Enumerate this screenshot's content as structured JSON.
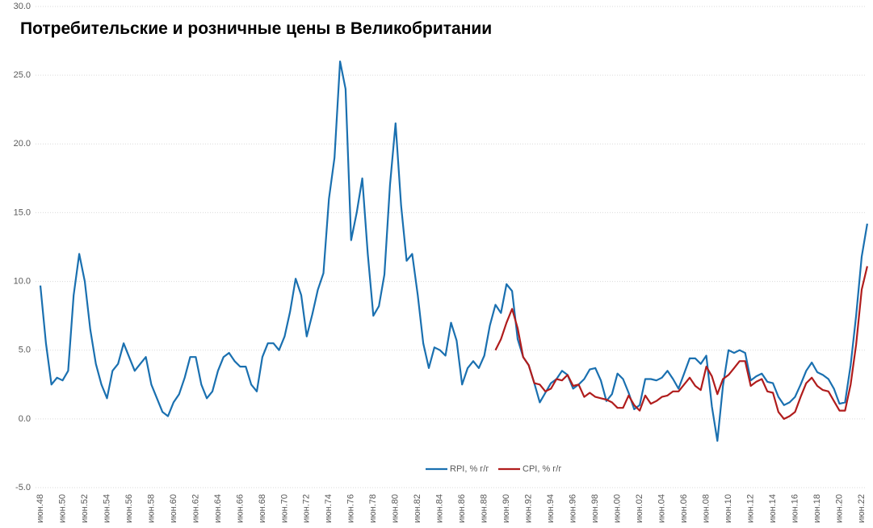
{
  "chart_data": {
    "type": "line",
    "title": "Потребительские и розничные цены в Великобритании",
    "categories": [
      "июн.48",
      null,
      null,
      null,
      "июн.50",
      null,
      null,
      null,
      "июн.52",
      null,
      null,
      null,
      "июн.54",
      null,
      null,
      null,
      "июн.56",
      null,
      null,
      null,
      "июн.58",
      null,
      null,
      null,
      "июн.60",
      null,
      null,
      null,
      "июн.62",
      null,
      null,
      null,
      "июн.64",
      null,
      null,
      null,
      "июн.66",
      null,
      null,
      null,
      "июн.68",
      null,
      null,
      null,
      "июн.70",
      null,
      null,
      null,
      "июн.72",
      null,
      null,
      null,
      "июн.74",
      null,
      null,
      null,
      "июн.76",
      null,
      null,
      null,
      "июн.78",
      null,
      null,
      null,
      "июн.80",
      null,
      null,
      null,
      "июн.82",
      null,
      null,
      null,
      "июн.84",
      null,
      null,
      null,
      "июн.86",
      null,
      null,
      null,
      "июн.88",
      null,
      null,
      null,
      "июн.90",
      null,
      null,
      null,
      "июн.92",
      null,
      null,
      null,
      "июн.94",
      null,
      null,
      null,
      "июн.96",
      null,
      null,
      null,
      "июн.98",
      null,
      null,
      null,
      "июн.00",
      null,
      null,
      null,
      "июн.02",
      null,
      null,
      null,
      "июн.04",
      null,
      null,
      null,
      "июн.06",
      null,
      null,
      null,
      "июн.08",
      null,
      null,
      null,
      "июн.10",
      null,
      null,
      null,
      "июн.12",
      null,
      null,
      null,
      "июн.14",
      null,
      null,
      null,
      "июн.16",
      null,
      null,
      null,
      "июн.18",
      null,
      null,
      null,
      "июн.20",
      null,
      null,
      null,
      "июн.22",
      null
    ],
    "series": [
      {
        "name": "RPI, % г/г",
        "color": "#1a70b0",
        "values": [
          9.7,
          5.5,
          2.5,
          3.0,
          2.8,
          3.5,
          9,
          12,
          10,
          6.5,
          4,
          2.5,
          1.5,
          3.5,
          4.0,
          5.5,
          4.5,
          3.5,
          4,
          4.5,
          2.5,
          1.5,
          0.5,
          0.2,
          1.2,
          1.8,
          3.0,
          4.5,
          4.5,
          2.5,
          1.5,
          2,
          3.5,
          4.5,
          4.8,
          4.2,
          3.8,
          3.8,
          2.5,
          2.0,
          4.5,
          5.5,
          5.5,
          5.0,
          6.0,
          7.8,
          10.2,
          9.0,
          6.0,
          7.6,
          9.4,
          10.6,
          16,
          19,
          26.0,
          24,
          13,
          15,
          17.5,
          12,
          7.5,
          8.2,
          10.5,
          17,
          21.5,
          15.5,
          11.5,
          12,
          9,
          5.5,
          3.7,
          5.2,
          5.0,
          4.6,
          7.0,
          5.7,
          2.5,
          3.7,
          4.2,
          3.7,
          4.6,
          6.8,
          8.3,
          7.7,
          9.8,
          9.3,
          5.8,
          4.5,
          3.9,
          2.6,
          1.2,
          1.9,
          2.6,
          2.9,
          3.5,
          3.2,
          2.2,
          2.5,
          2.9,
          3.6,
          3.7,
          2.8,
          1.3,
          1.8,
          3.3,
          2.9,
          1.9,
          0.7,
          1.0,
          2.9,
          2.9,
          2.8,
          3.0,
          3.5,
          2.9,
          2.2,
          3.3,
          4.4,
          4.4,
          4.0,
          4.6,
          0.9,
          -1.6,
          2.4,
          5.0,
          4.8,
          5.0,
          4.8,
          2.8,
          3.1,
          3.3,
          2.7,
          2.6,
          1.6,
          1.0,
          1.2,
          1.6,
          2.5,
          3.5,
          4.1,
          3.4,
          3.2,
          2.9,
          2.2,
          1.1,
          1.2,
          3.9,
          7.5,
          11.8,
          14.2
        ]
      },
      {
        "name": "CPI, % г/г",
        "color": "#b01c1c",
        "values": [
          null,
          null,
          null,
          null,
          null,
          null,
          null,
          null,
          null,
          null,
          null,
          null,
          null,
          null,
          null,
          null,
          null,
          null,
          null,
          null,
          null,
          null,
          null,
          null,
          null,
          null,
          null,
          null,
          null,
          null,
          null,
          null,
          null,
          null,
          null,
          null,
          null,
          null,
          null,
          null,
          null,
          null,
          null,
          null,
          null,
          null,
          null,
          null,
          null,
          null,
          null,
          null,
          null,
          null,
          null,
          null,
          null,
          null,
          null,
          null,
          null,
          null,
          null,
          null,
          null,
          null,
          null,
          null,
          null,
          null,
          null,
          null,
          null,
          null,
          null,
          null,
          null,
          null,
          null,
          null,
          null,
          null,
          5.0,
          5.8,
          7.0,
          8.0,
          6.6,
          4.5,
          3.9,
          2.6,
          2.5,
          2.0,
          2.2,
          2.9,
          2.8,
          3.2,
          2.4,
          2.5,
          1.6,
          1.9,
          1.6,
          1.5,
          1.4,
          1.2,
          0.8,
          0.8,
          1.7,
          1.0,
          0.6,
          1.7,
          1.1,
          1.3,
          1.6,
          1.7,
          2.0,
          2.0,
          2.5,
          3.0,
          2.4,
          2.1,
          3.8,
          3.1,
          1.8,
          2.9,
          3.2,
          3.7,
          4.2,
          4.2,
          2.4,
          2.7,
          2.9,
          2.0,
          1.9,
          0.5,
          0.0,
          0.2,
          0.5,
          1.6,
          2.6,
          3.0,
          2.4,
          2.1,
          2.0,
          1.3,
          0.6,
          0.6,
          2.5,
          5.4,
          9.4,
          11.1
        ]
      }
    ],
    "ylim": [
      -5,
      30
    ],
    "yticks": [
      {
        "value": -5,
        "label": "-5.0"
      },
      {
        "value": 0,
        "label": "0.0"
      },
      {
        "value": 5,
        "label": "5.0"
      },
      {
        "value": 10,
        "label": "10.0"
      },
      {
        "value": 15,
        "label": "15.0"
      },
      {
        "value": 20,
        "label": "20.0"
      },
      {
        "value": 25,
        "label": "25.0"
      },
      {
        "value": 30,
        "label": "30.0"
      }
    ],
    "grid": true,
    "legend": "bottom"
  }
}
